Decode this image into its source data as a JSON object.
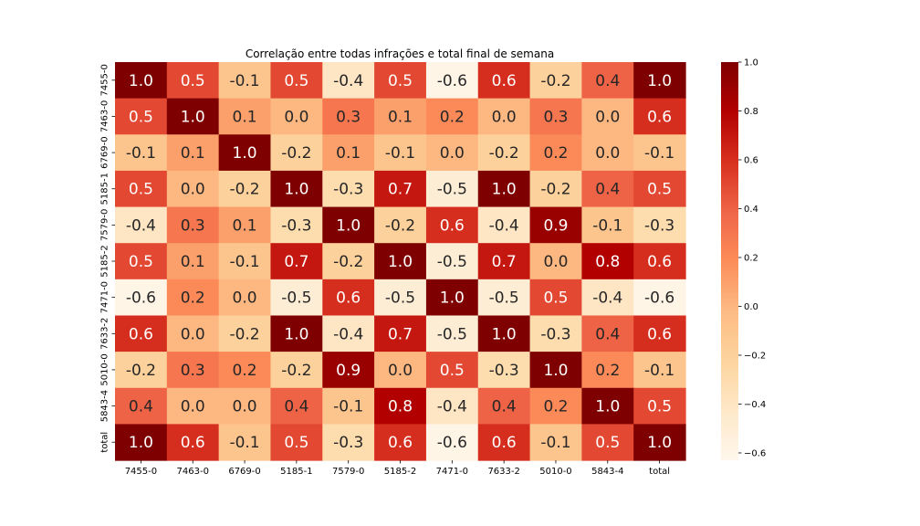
{
  "chart_data": {
    "type": "heatmap",
    "title": "Correlação entre todas infrações e total final de semana",
    "xlabel": "",
    "ylabel": "",
    "row_labels": [
      "7455-0",
      "7463-0",
      "6769-0",
      "5185-1",
      "7579-0",
      "5185-2",
      "7471-0",
      "7633-2",
      "5010-0",
      "5843-4",
      "total"
    ],
    "col_labels": [
      "7455-0",
      "7463-0",
      "6769-0",
      "5185-1",
      "7579-0",
      "5185-2",
      "7471-0",
      "7633-2",
      "5010-0",
      "5843-4",
      "total"
    ],
    "values": [
      [
        1.0,
        0.5,
        -0.1,
        0.5,
        -0.4,
        0.5,
        -0.6,
        0.6,
        -0.2,
        0.4,
        1.0
      ],
      [
        0.5,
        1.0,
        0.1,
        0.0,
        0.3,
        0.1,
        0.2,
        0.0,
        0.3,
        0.0,
        0.6
      ],
      [
        -0.1,
        0.1,
        1.0,
        -0.2,
        0.1,
        -0.1,
        -0.0,
        -0.2,
        0.2,
        0.0,
        -0.1
      ],
      [
        0.5,
        0.0,
        -0.2,
        1.0,
        -0.3,
        0.7,
        -0.5,
        1.0,
        -0.2,
        0.4,
        0.5
      ],
      [
        -0.4,
        0.3,
        0.1,
        -0.3,
        1.0,
        -0.2,
        0.6,
        -0.4,
        0.9,
        -0.1,
        -0.3
      ],
      [
        0.5,
        0.1,
        -0.1,
        0.7,
        -0.2,
        1.0,
        -0.5,
        0.7,
        0.0,
        0.8,
        0.6
      ],
      [
        -0.6,
        0.2,
        -0.0,
        -0.5,
        0.6,
        -0.5,
        1.0,
        -0.5,
        0.5,
        -0.4,
        -0.6
      ],
      [
        0.6,
        0.0,
        -0.2,
        1.0,
        -0.4,
        0.7,
        -0.5,
        1.0,
        -0.3,
        0.4,
        0.6
      ],
      [
        -0.2,
        0.3,
        0.2,
        -0.2,
        0.9,
        0.0,
        0.5,
        -0.3,
        1.0,
        0.2,
        -0.1
      ],
      [
        0.4,
        0.0,
        0.0,
        0.4,
        -0.1,
        0.8,
        -0.4,
        0.4,
        0.2,
        1.0,
        0.5
      ],
      [
        1.0,
        0.6,
        -0.1,
        0.5,
        -0.3,
        0.6,
        -0.6,
        0.6,
        -0.1,
        0.5,
        1.0
      ]
    ],
    "annotations": "values shown in each cell with one decimal",
    "colormap": "OrRd",
    "color_range": [
      -0.63,
      1.0
    ],
    "colorbar_ticks": [
      1.0,
      0.8,
      0.6,
      0.4,
      0.2,
      0.0,
      -0.2,
      -0.4,
      -0.6
    ],
    "colorbar_tick_labels": [
      "1.0",
      "0.8",
      "0.6",
      "0.4",
      "0.2",
      "0.0",
      "−0.2",
      "−0.4",
      "−0.6"
    ],
    "colormap_stops": [
      "#fff7ec",
      "#fee8c8",
      "#fdd49e",
      "#fdbb84",
      "#fc8d59",
      "#ef6548",
      "#d7301f",
      "#b30000",
      "#7f0000"
    ],
    "grid": false,
    "legend": "colorbar right"
  }
}
